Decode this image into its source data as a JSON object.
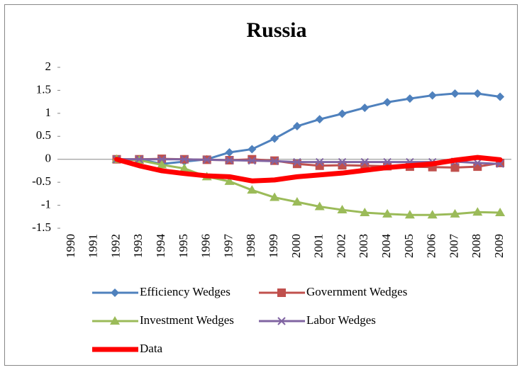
{
  "chart_data": {
    "type": "line",
    "title": "Russia",
    "categories": [
      "1990",
      "1991",
      "1992",
      "1993",
      "1994",
      "1995",
      "1996",
      "1997",
      "1998",
      "1999",
      "2000",
      "2001",
      "2002",
      "2003",
      "2004",
      "2005",
      "2006",
      "2007",
      "2008",
      "2009"
    ],
    "ylim": [
      -1.5,
      2
    ],
    "yticks": [
      2,
      1.5,
      1,
      0.5,
      0,
      -0.5,
      -1,
      -1.5
    ],
    "series": [
      {
        "name": "Efficiency Wedges",
        "color": "#4f81bd",
        "marker": "diamond",
        "values": [
          null,
          null,
          0,
          0,
          -0.1,
          -0.05,
          0,
          0.15,
          0.22,
          0.45,
          0.72,
          0.87,
          0.99,
          1.12,
          1.24,
          1.32,
          1.39,
          1.43,
          1.43,
          1.36
        ]
      },
      {
        "name": "Government Wedges",
        "color": "#c0504d",
        "marker": "square",
        "values": [
          null,
          null,
          0,
          0,
          0.01,
          0,
          -0.01,
          -0.02,
          0,
          -0.03,
          -0.1,
          -0.14,
          -0.13,
          -0.14,
          -0.15,
          -0.16,
          -0.17,
          -0.18,
          -0.16,
          -0.08
        ]
      },
      {
        "name": "Investment Wedges",
        "color": "#9bbb59",
        "marker": "triangle",
        "values": [
          null,
          null,
          0,
          -0.02,
          -0.12,
          -0.2,
          -0.38,
          -0.48,
          -0.67,
          -0.83,
          -0.93,
          -1.03,
          -1.1,
          -1.16,
          -1.19,
          -1.21,
          -1.21,
          -1.19,
          -1.15,
          -1.16
        ]
      },
      {
        "name": "Labor Wedges",
        "color": "#8064a2",
        "marker": "x",
        "values": [
          null,
          null,
          0,
          0,
          0,
          0,
          -0.01,
          -0.02,
          -0.03,
          -0.04,
          -0.06,
          -0.06,
          -0.06,
          -0.06,
          -0.06,
          -0.06,
          -0.06,
          -0.05,
          -0.08,
          -0.1
        ]
      },
      {
        "name": "Data",
        "color": "#ff0000",
        "marker": "none",
        "values": [
          null,
          null,
          0,
          -0.14,
          -0.25,
          -0.31,
          -0.36,
          -0.38,
          -0.47,
          -0.45,
          -0.38,
          -0.34,
          -0.3,
          -0.24,
          -0.18,
          -0.14,
          -0.1,
          -0.02,
          0.04,
          -0.01
        ]
      }
    ]
  }
}
